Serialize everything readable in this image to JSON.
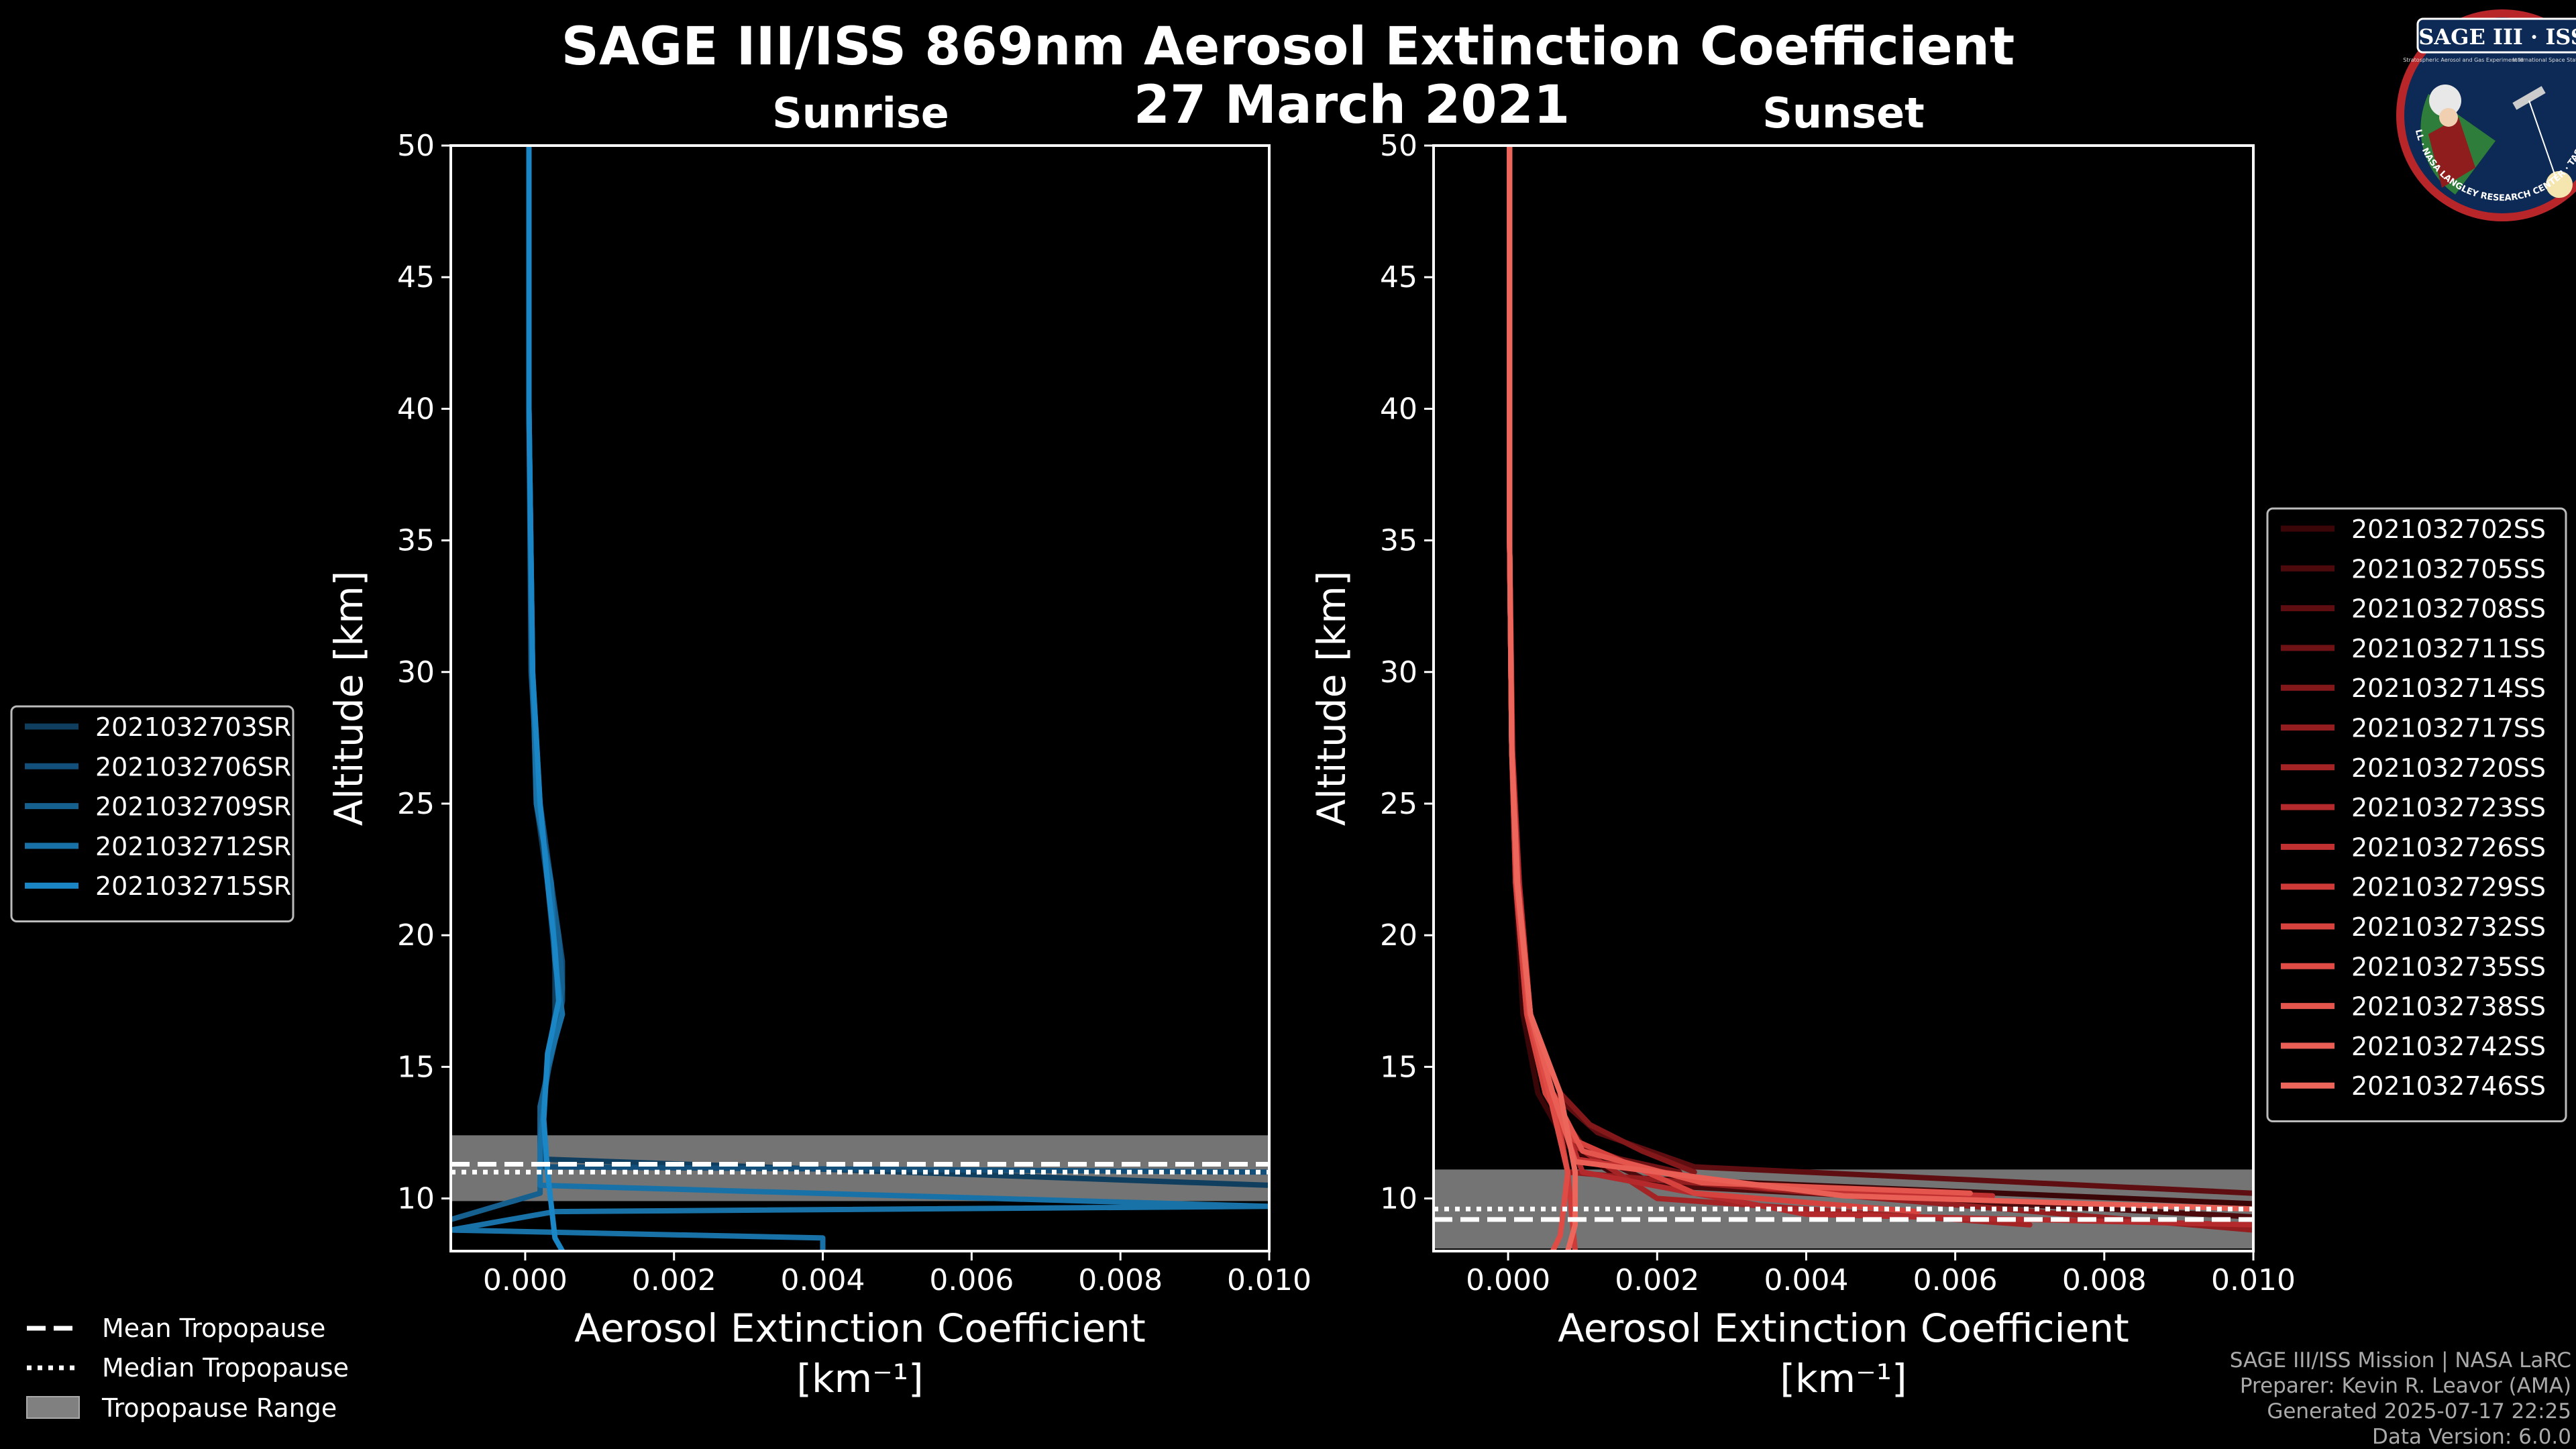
{
  "figure": {
    "title_line1": "SAGE III/ISS 869nm Aerosol Extinction Coefficient",
    "title_line2": "27 March 2021",
    "background": "#000000",
    "foreground": "#ffffff"
  },
  "logo": {
    "banner": "SAGE III · ISS",
    "subtitle_left": "Stratospheric Aerosol and Gas Experiment III",
    "subtitle_right": "International Space Station",
    "ring_text": "BALL · NASA LANGLEY RESEARCH CENTER · TAS-I · ESA"
  },
  "chart_data": [
    {
      "type": "line",
      "panel": "sunrise",
      "title": "Sunrise",
      "xlabel": "Aerosol Extinction Coefficient",
      "xunit": "[km⁻¹]",
      "ylabel": "Altitude [km]",
      "xlim": [
        -0.001,
        0.01
      ],
      "ylim": [
        8,
        50
      ],
      "xticks": [
        0.0,
        0.002,
        0.004,
        0.006,
        0.008,
        0.01
      ],
      "xtick_labels": [
        "0.000",
        "0.002",
        "0.004",
        "0.006",
        "0.008",
        "0.010"
      ],
      "yticks": [
        10,
        15,
        20,
        25,
        30,
        35,
        40,
        45,
        50
      ],
      "ytick_labels": [
        "10",
        "15",
        "20",
        "25",
        "30",
        "35",
        "40",
        "45",
        "50"
      ],
      "tropopause": {
        "mean": 11.3,
        "median": 11.0,
        "range": [
          9.9,
          12.4
        ]
      },
      "legend_position": "outside-left",
      "series": [
        {
          "name": "2021032703SR",
          "color": "#0f3e5f",
          "points": [
            [
              5e-05,
              50
            ],
            [
              5e-05,
              40
            ],
            [
              0.0001,
              30
            ],
            [
              0.00015,
              25
            ],
            [
              0.0003,
              22
            ],
            [
              0.0004,
              19
            ],
            [
              0.0004,
              17
            ],
            [
              0.0003,
              15
            ],
            [
              0.0002,
              13
            ],
            [
              0.0002,
              11.5
            ],
            [
              0.01,
              10.5
            ]
          ]
        },
        {
          "name": "2021032706SR",
          "color": "#124f7a",
          "points": [
            [
              5e-05,
              50
            ],
            [
              5e-05,
              40
            ],
            [
              0.0001,
              30
            ],
            [
              0.0002,
              25
            ],
            [
              0.00035,
              22
            ],
            [
              0.0005,
              19
            ],
            [
              0.0005,
              17.5
            ],
            [
              0.00035,
              15.5
            ],
            [
              0.0002,
              13
            ],
            [
              0.00025,
              11.2
            ],
            [
              0.01,
              11.0
            ]
          ]
        },
        {
          "name": "2021032709SR",
          "color": "#15608f",
          "points": [
            [
              5e-05,
              50
            ],
            [
              5e-05,
              40
            ],
            [
              8e-05,
              30
            ],
            [
              0.00018,
              25
            ],
            [
              0.0003,
              22.5
            ],
            [
              0.00045,
              20
            ],
            [
              0.0005,
              18
            ],
            [
              0.0004,
              16
            ],
            [
              0.0002,
              13.5
            ],
            [
              0.0002,
              10.2
            ],
            [
              -0.001,
              9.2
            ]
          ]
        },
        {
          "name": "2021032712SR",
          "color": "#1872a8",
          "points": [
            [
              5e-05,
              50
            ],
            [
              5e-05,
              40
            ],
            [
              0.0001,
              30
            ],
            [
              0.00015,
              25
            ],
            [
              0.00035,
              22
            ],
            [
              0.0004,
              19
            ],
            [
              0.0005,
              17
            ],
            [
              0.0003,
              15
            ],
            [
              0.0002,
              12
            ],
            [
              0.0002,
              10.5
            ],
            [
              0.01,
              9.7
            ],
            [
              0.0004,
              9.5
            ],
            [
              -0.001,
              8.8
            ],
            [
              0.004,
              8.5
            ],
            [
              0.004,
              8.0
            ]
          ]
        },
        {
          "name": "2021032715SR",
          "color": "#1b86c5",
          "points": [
            [
              5e-05,
              50
            ],
            [
              5e-05,
              40
            ],
            [
              0.0001,
              30
            ],
            [
              0.0002,
              25
            ],
            [
              0.0003,
              22
            ],
            [
              0.0004,
              19.5
            ],
            [
              0.00045,
              17.5
            ],
            [
              0.0003,
              15.5
            ],
            [
              0.00025,
              13
            ],
            [
              0.0003,
              11
            ],
            [
              0.0004,
              8.5
            ],
            [
              0.0005,
              8.0
            ]
          ]
        }
      ]
    },
    {
      "type": "line",
      "panel": "sunset",
      "title": "Sunset",
      "xlabel": "Aerosol Extinction Coefficient",
      "xunit": "[km⁻¹]",
      "ylabel": "Altitude [km]",
      "xlim": [
        -0.001,
        0.01
      ],
      "ylim": [
        8,
        50
      ],
      "xticks": [
        0.0,
        0.002,
        0.004,
        0.006,
        0.008,
        0.01
      ],
      "xtick_labels": [
        "0.000",
        "0.002",
        "0.004",
        "0.006",
        "0.008",
        "0.010"
      ],
      "yticks": [
        10,
        15,
        20,
        25,
        30,
        35,
        40,
        45,
        50
      ],
      "ytick_labels": [
        "10",
        "15",
        "20",
        "25",
        "30",
        "35",
        "40",
        "45",
        "50"
      ],
      "tropopause": {
        "mean": 9.2,
        "median": 9.6,
        "range": [
          8.1,
          11.1
        ]
      },
      "legend_position": "outside-right",
      "series": [
        {
          "name": "2021032702SS",
          "color": "#3a0607",
          "points": [
            [
              2e-05,
              50
            ],
            [
              2e-05,
              35
            ],
            [
              5e-05,
              27
            ],
            [
              0.0001,
              22
            ],
            [
              0.0002,
              17
            ],
            [
              0.0004,
              14
            ],
            [
              0.0008,
              12
            ],
            [
              0.0015,
              10.8
            ],
            [
              0.01,
              9.8
            ]
          ]
        },
        {
          "name": "2021032705SS",
          "color": "#4d0a0c",
          "points": [
            [
              2e-05,
              50
            ],
            [
              2e-05,
              35
            ],
            [
              5e-05,
              27
            ],
            [
              0.00012,
              22
            ],
            [
              0.00025,
              17
            ],
            [
              0.0005,
              14
            ],
            [
              0.0009,
              12
            ],
            [
              0.002,
              10.5
            ],
            [
              0.01,
              9.3
            ]
          ]
        },
        {
          "name": "2021032708SS",
          "color": "#5e0e10",
          "points": [
            [
              2e-05,
              50
            ],
            [
              2e-05,
              35
            ],
            [
              5e-05,
              27
            ],
            [
              0.00012,
              22
            ],
            [
              0.0003,
              17
            ],
            [
              0.0006,
              14
            ],
            [
              0.0012,
              12.5
            ],
            [
              0.0025,
              11.2
            ],
            [
              0.01,
              10.2
            ]
          ]
        },
        {
          "name": "2021032711SS",
          "color": "#6f1215",
          "points": [
            [
              2e-05,
              50
            ],
            [
              2e-05,
              35
            ],
            [
              5e-05,
              27
            ],
            [
              0.0001,
              22
            ],
            [
              0.00025,
              17
            ],
            [
              0.0005,
              14
            ],
            [
              0.001,
              12
            ],
            [
              0.0015,
              11.5
            ],
            [
              0.0023,
              11.0
            ]
          ]
        },
        {
          "name": "2021032714SS",
          "color": "#82181a",
          "points": [
            [
              2e-05,
              50
            ],
            [
              2e-05,
              35
            ],
            [
              5e-05,
              27
            ],
            [
              0.00015,
              22
            ],
            [
              0.0003,
              17
            ],
            [
              0.0007,
              14
            ],
            [
              0.0011,
              12.8
            ],
            [
              0.0018,
              11.8
            ],
            [
              0.0025,
              11.0
            ]
          ]
        },
        {
          "name": "2021032717SS",
          "color": "#931d1f",
          "points": [
            [
              2e-05,
              50
            ],
            [
              2e-05,
              35
            ],
            [
              5e-05,
              27
            ],
            [
              0.00012,
              22
            ],
            [
              0.0003,
              17
            ],
            [
              0.0006,
              14
            ],
            [
              0.0008,
              11
            ],
            [
              0.01,
              8.8
            ]
          ]
        },
        {
          "name": "2021032720SS",
          "color": "#a42325",
          "points": [
            [
              2e-05,
              50
            ],
            [
              2e-05,
              35
            ],
            [
              5e-05,
              27
            ],
            [
              0.0001,
              22
            ],
            [
              0.00025,
              17
            ],
            [
              0.0005,
              14
            ],
            [
              0.0009,
              12
            ],
            [
              0.002,
              10
            ],
            [
              0.007,
              9.0
            ]
          ]
        },
        {
          "name": "2021032723SS",
          "color": "#b4292b",
          "points": [
            [
              2e-05,
              50
            ],
            [
              2e-05,
              35
            ],
            [
              6e-05,
              27
            ],
            [
              0.00015,
              22
            ],
            [
              0.0003,
              17
            ],
            [
              0.0006,
              14
            ],
            [
              0.001,
              11
            ],
            [
              0.004,
              9.4
            ],
            [
              0.01,
              9.0
            ]
          ]
        },
        {
          "name": "2021032726SS",
          "color": "#c23131",
          "points": [
            [
              2e-05,
              50
            ],
            [
              2e-05,
              35
            ],
            [
              5e-05,
              27
            ],
            [
              0.00012,
              22
            ],
            [
              0.00028,
              17
            ],
            [
              0.0006,
              14
            ],
            [
              0.0009,
              11.5
            ],
            [
              0.0035,
              10.4
            ],
            [
              0.0065,
              10.1
            ]
          ]
        },
        {
          "name": "2021032729SS",
          "color": "#cd3a37",
          "points": [
            [
              2e-05,
              50
            ],
            [
              2e-05,
              35
            ],
            [
              5e-05,
              27
            ],
            [
              0.00012,
              22
            ],
            [
              0.0003,
              17
            ],
            [
              0.0006,
              14
            ],
            [
              0.0008,
              11
            ],
            [
              0.0009,
              8.0
            ]
          ]
        },
        {
          "name": "2021032732SS",
          "color": "#d6433e",
          "points": [
            [
              2e-05,
              50
            ],
            [
              2e-05,
              35
            ],
            [
              5e-05,
              27
            ],
            [
              0.0001,
              22
            ],
            [
              0.00025,
              17
            ],
            [
              0.0005,
              14
            ],
            [
              0.0009,
              12.2
            ],
            [
              0.0025,
              10.2
            ],
            [
              0.0055,
              9.5
            ]
          ]
        },
        {
          "name": "2021032735SS",
          "color": "#de4c45",
          "points": [
            [
              2e-05,
              50
            ],
            [
              2e-05,
              35
            ],
            [
              5e-05,
              27
            ],
            [
              0.00012,
              22
            ],
            [
              0.00028,
              17
            ],
            [
              0.00055,
              14
            ],
            [
              0.0008,
              11
            ],
            [
              0.0007,
              8.6
            ],
            [
              0.0006,
              8.0
            ]
          ]
        },
        {
          "name": "2021032738SS",
          "color": "#e4564d",
          "points": [
            [
              2e-05,
              50
            ],
            [
              2e-05,
              35
            ],
            [
              5e-05,
              27
            ],
            [
              0.00012,
              22
            ],
            [
              0.0003,
              17
            ],
            [
              0.0006,
              14
            ],
            [
              0.001,
              11.8
            ],
            [
              0.0026,
              10.6
            ],
            [
              0.0062,
              10.2
            ]
          ]
        },
        {
          "name": "2021032742SS",
          "color": "#e95e55",
          "points": [
            [
              2e-05,
              50
            ],
            [
              2e-05,
              35
            ],
            [
              5e-05,
              27
            ],
            [
              0.00013,
              22
            ],
            [
              0.0003,
              17
            ],
            [
              0.0006,
              14
            ],
            [
              0.0009,
              11.4
            ],
            [
              0.0045,
              10.1
            ],
            [
              0.01,
              9.6
            ]
          ]
        },
        {
          "name": "2021032746SS",
          "color": "#ec665c",
          "points": [
            [
              2e-05,
              50
            ],
            [
              2e-05,
              35
            ],
            [
              5e-05,
              27
            ],
            [
              0.00012,
              22
            ],
            [
              0.0003,
              17
            ],
            [
              0.0007,
              14
            ],
            [
              0.0009,
              11
            ],
            [
              0.0009,
              9.0
            ],
            [
              0.0008,
              8.0
            ]
          ]
        }
      ]
    }
  ],
  "tropopause_legend": {
    "mean_label": "Mean Tropopause",
    "median_label": "Median Tropopause",
    "range_label": "Tropopause Range",
    "range_color": "#808080"
  },
  "footer": {
    "line1": "SAGE III/ISS Mission | NASA LaRC",
    "line2": "Preparer: Kevin R. Leavor (AMA)",
    "line3": "Generated 2025-07-17 22:25",
    "line4": "Data Version: 6.0.0"
  }
}
